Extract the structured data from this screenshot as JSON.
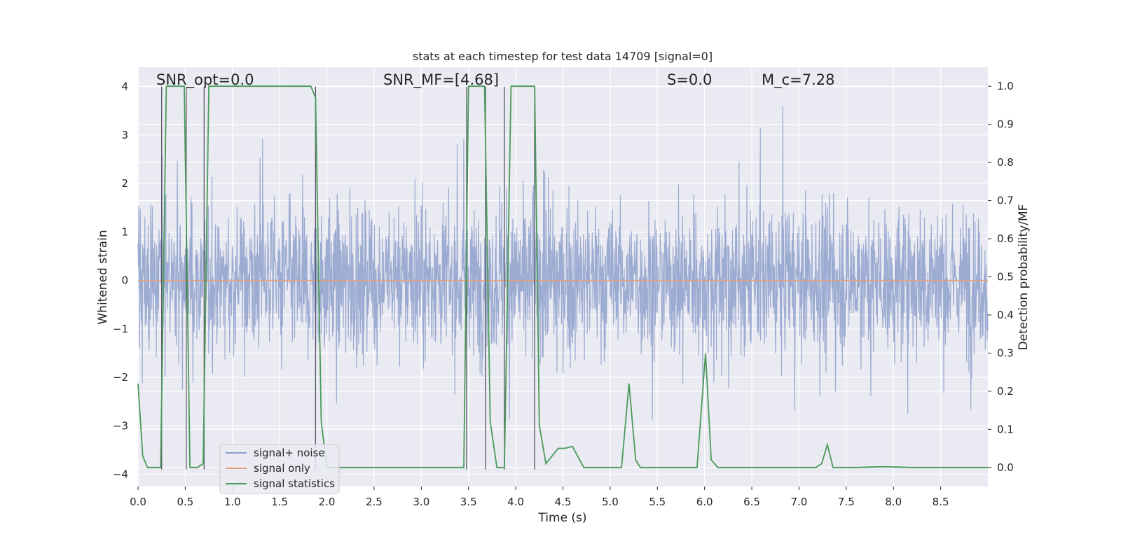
{
  "chart_data": {
    "type": "line",
    "title": "stats at each timestep for test data 14709 [signal=0]",
    "xlabel": "Time (s)",
    "ylabel": "Whitened strain",
    "y2label": "Detection probability/MF",
    "xlim": [
      0,
      9.0
    ],
    "ylim": [
      -4.25,
      4.4
    ],
    "y2lim": [
      -0.05,
      1.05
    ],
    "x_ticks": [
      "0.0",
      "0.5",
      "1.0",
      "1.5",
      "2.0",
      "2.5",
      "3.0",
      "3.5",
      "4.0",
      "4.5",
      "5.0",
      "5.5",
      "6.0",
      "6.5",
      "7.0",
      "7.5",
      "8.0",
      "8.5"
    ],
    "x_tick_values": [
      0,
      0.5,
      1.0,
      1.5,
      2.0,
      2.5,
      3.0,
      3.5,
      4.0,
      4.5,
      5.0,
      5.5,
      6.0,
      6.5,
      7.0,
      7.5,
      8.0,
      8.5
    ],
    "y_ticks": [
      "−4",
      "−3",
      "−2",
      "−1",
      "0",
      "1",
      "2",
      "3",
      "4"
    ],
    "y_tick_values": [
      -4,
      -3,
      -2,
      -1,
      0,
      1,
      2,
      3,
      4
    ],
    "y2_ticks": [
      "0.0",
      "0.1",
      "0.2",
      "0.3",
      "0.4",
      "0.5",
      "0.6",
      "0.7",
      "0.8",
      "0.9",
      "1.0"
    ],
    "y2_tick_values": [
      0,
      0.1,
      0.2,
      0.3,
      0.4,
      0.5,
      0.6,
      0.7,
      0.8,
      0.9,
      1.0
    ],
    "grid": true,
    "legend_placement": "lower-left",
    "annotations": [
      {
        "label": "SNR_opt=0.0",
        "x": 0.2
      },
      {
        "label": "SNR_MF=[4.68]",
        "x": 2.6
      },
      {
        "label": "S=0.0",
        "x": 5.6
      },
      {
        "label": "M_c=7.28",
        "x": 6.6
      }
    ],
    "series": [
      {
        "name": "signal+ noise",
        "color": "#8da0cb",
        "style": "dense-noise",
        "amplitude_bands": {
          "typical": 1.6,
          "peak": 3.6
        }
      },
      {
        "name": "signal only",
        "color": "#e5a07a",
        "style": "flat",
        "value": 0.0
      },
      {
        "name": "signal statistics",
        "color": "#4a9a5a",
        "axis": "right",
        "points": [
          [
            0.0,
            0.22
          ],
          [
            0.05,
            0.03
          ],
          [
            0.1,
            0.0
          ],
          [
            0.24,
            0.0
          ],
          [
            0.3,
            1.0
          ],
          [
            0.49,
            1.0
          ],
          [
            0.55,
            0.0
          ],
          [
            0.63,
            0.0
          ],
          [
            0.69,
            0.01
          ],
          [
            0.75,
            1.0
          ],
          [
            1.83,
            1.0
          ],
          [
            1.88,
            0.97
          ],
          [
            1.94,
            0.12
          ],
          [
            2.0,
            0.0
          ],
          [
            3.45,
            0.0
          ],
          [
            3.5,
            1.0
          ],
          [
            3.67,
            1.0
          ],
          [
            3.73,
            0.12
          ],
          [
            3.8,
            0.0
          ],
          [
            3.88,
            0.0
          ],
          [
            3.95,
            1.0
          ],
          [
            4.2,
            1.0
          ],
          [
            4.25,
            0.11
          ],
          [
            4.32,
            0.01
          ],
          [
            4.45,
            0.05
          ],
          [
            4.52,
            0.05
          ],
          [
            4.6,
            0.055
          ],
          [
            4.72,
            0.0
          ],
          [
            5.12,
            0.0
          ],
          [
            5.2,
            0.22
          ],
          [
            5.27,
            0.02
          ],
          [
            5.32,
            0.0
          ],
          [
            5.92,
            0.0
          ],
          [
            6.01,
            0.3
          ],
          [
            6.07,
            0.02
          ],
          [
            6.14,
            0.0
          ],
          [
            7.18,
            0.0
          ],
          [
            7.24,
            0.01
          ],
          [
            7.3,
            0.06
          ],
          [
            7.36,
            0.0
          ],
          [
            7.6,
            0.0
          ],
          [
            7.9,
            0.002
          ],
          [
            8.2,
            0.0
          ],
          [
            9.0,
            0.0
          ]
        ]
      }
    ],
    "events": [
      0.25,
      0.51,
      0.7,
      1.88,
      3.48,
      3.68,
      3.88,
      4.2
    ]
  }
}
